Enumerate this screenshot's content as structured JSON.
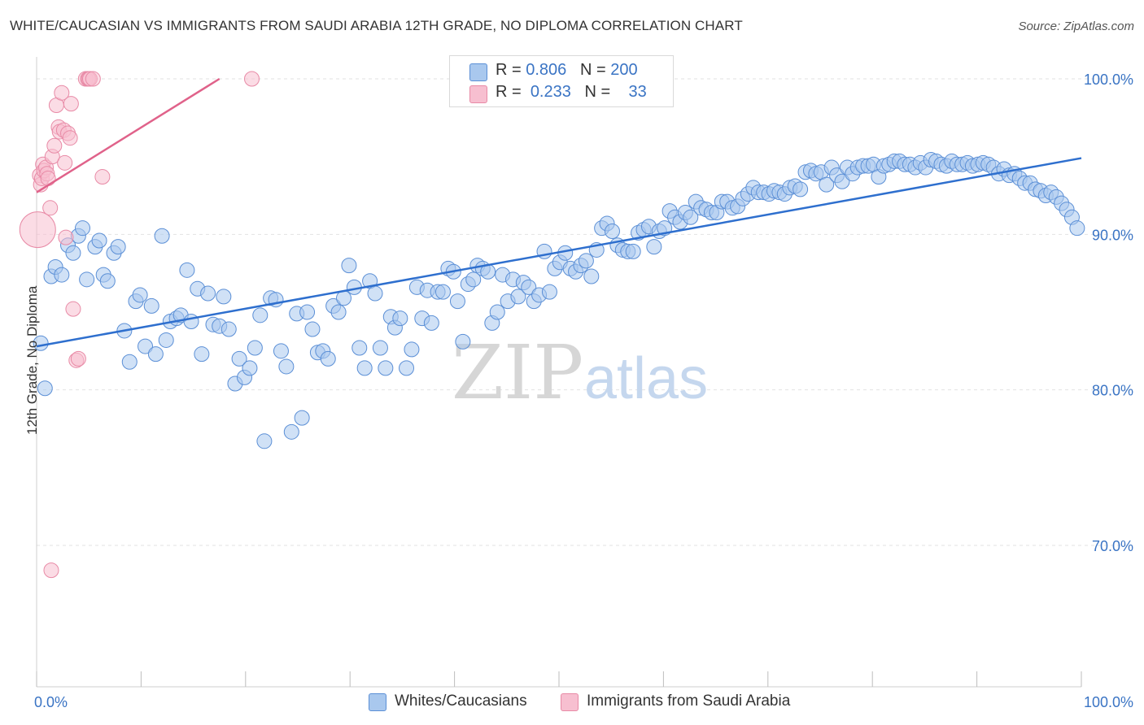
{
  "title": "WHITE/CAUCASIAN VS IMMIGRANTS FROM SAUDI ARABIA 12TH GRADE, NO DIPLOMA CORRELATION CHART",
  "source": "Source: ZipAtlas.com",
  "watermark": {
    "zip": "ZIP",
    "atlas": "atlas"
  },
  "legend": {
    "r_label": "R =",
    "n_label": "N =",
    "series1": {
      "r": "0.806",
      "n": "200"
    },
    "series2": {
      "r": "0.233",
      "n": "33"
    }
  },
  "colors": {
    "blue_fill": "#a9c8ee",
    "blue_stroke": "#5b8fd6",
    "blue_line": "#2e6fce",
    "pink_fill": "#f7bfd0",
    "pink_stroke": "#e88aa6",
    "pink_line": "#e0628a",
    "tick_text": "#3a74c4",
    "grid": "#e2e2e2"
  },
  "chart_data": {
    "type": "scatter",
    "title": "WHITE/CAUCASIAN VS IMMIGRANTS FROM SAUDI ARABIA 12TH GRADE, NO DIPLOMA CORRELATION CHART",
    "xlabel": "",
    "ylabel": "12th Grade, No Diploma",
    "xlim": [
      0,
      100
    ],
    "ylim": [
      60.5,
      102.5
    ],
    "x_tick_labels": [
      "0.0%",
      "100.0%"
    ],
    "y_ticks": [
      70,
      80,
      90,
      100
    ],
    "y_tick_labels": [
      "70.0%",
      "80.0%",
      "90.0%",
      "100.0%"
    ],
    "legend_position": "top-center",
    "series": [
      {
        "name": "Whites/Caucasians",
        "r": 0.806,
        "n": 200,
        "trend": {
          "x": [
            0,
            100
          ],
          "y": [
            82.8,
            94.9
          ]
        },
        "points": [
          [
            0.4,
            83.0
          ],
          [
            0.8,
            80.1
          ],
          [
            1.4,
            87.3
          ],
          [
            1.8,
            87.9
          ],
          [
            2.4,
            87.4
          ],
          [
            3.0,
            89.3
          ],
          [
            3.5,
            88.8
          ],
          [
            4.0,
            89.9
          ],
          [
            4.4,
            90.4
          ],
          [
            4.8,
            87.1
          ],
          [
            5.6,
            89.2
          ],
          [
            6.0,
            89.6
          ],
          [
            6.4,
            87.4
          ],
          [
            6.8,
            87.0
          ],
          [
            7.4,
            88.8
          ],
          [
            7.8,
            89.2
          ],
          [
            8.4,
            83.8
          ],
          [
            8.9,
            81.8
          ],
          [
            9.5,
            85.7
          ],
          [
            9.9,
            86.1
          ],
          [
            10.4,
            82.8
          ],
          [
            11.0,
            85.4
          ],
          [
            11.4,
            82.3
          ],
          [
            12.0,
            89.9
          ],
          [
            12.4,
            83.2
          ],
          [
            12.8,
            84.4
          ],
          [
            13.4,
            84.6
          ],
          [
            13.8,
            84.8
          ],
          [
            14.4,
            87.7
          ],
          [
            14.8,
            84.4
          ],
          [
            15.4,
            86.5
          ],
          [
            15.8,
            82.3
          ],
          [
            16.4,
            86.2
          ],
          [
            16.9,
            84.2
          ],
          [
            17.5,
            84.1
          ],
          [
            17.9,
            86.0
          ],
          [
            18.4,
            83.9
          ],
          [
            19.0,
            80.4
          ],
          [
            19.4,
            82.0
          ],
          [
            19.9,
            80.8
          ],
          [
            20.4,
            81.4
          ],
          [
            20.9,
            82.7
          ],
          [
            21.4,
            84.8
          ],
          [
            21.8,
            76.7
          ],
          [
            22.4,
            85.9
          ],
          [
            22.9,
            85.8
          ],
          [
            23.4,
            82.5
          ],
          [
            23.9,
            81.5
          ],
          [
            24.4,
            77.3
          ],
          [
            24.9,
            84.9
          ],
          [
            25.4,
            78.2
          ],
          [
            25.9,
            85.0
          ],
          [
            26.4,
            83.9
          ],
          [
            26.9,
            82.4
          ],
          [
            27.4,
            82.5
          ],
          [
            27.9,
            82.0
          ],
          [
            28.4,
            85.4
          ],
          [
            28.9,
            85.0
          ],
          [
            29.4,
            85.9
          ],
          [
            29.9,
            88.0
          ],
          [
            30.4,
            86.6
          ],
          [
            30.9,
            82.7
          ],
          [
            31.4,
            81.4
          ],
          [
            31.9,
            87.0
          ],
          [
            32.4,
            86.2
          ],
          [
            32.9,
            82.7
          ],
          [
            33.4,
            81.4
          ],
          [
            33.9,
            84.7
          ],
          [
            34.3,
            84.0
          ],
          [
            34.8,
            84.6
          ],
          [
            35.4,
            81.4
          ],
          [
            35.9,
            82.6
          ],
          [
            36.4,
            86.6
          ],
          [
            36.9,
            84.6
          ],
          [
            37.4,
            86.4
          ],
          [
            37.8,
            84.3
          ],
          [
            38.4,
            86.3
          ],
          [
            38.9,
            86.3
          ],
          [
            39.4,
            87.8
          ],
          [
            39.9,
            87.6
          ],
          [
            40.3,
            85.7
          ],
          [
            40.8,
            83.1
          ],
          [
            41.3,
            86.8
          ],
          [
            41.8,
            87.1
          ],
          [
            42.2,
            88.0
          ],
          [
            42.7,
            87.8
          ],
          [
            43.2,
            87.6
          ],
          [
            43.6,
            84.3
          ],
          [
            44.1,
            85.0
          ],
          [
            44.6,
            87.4
          ],
          [
            45.1,
            85.7
          ],
          [
            45.6,
            87.1
          ],
          [
            46.1,
            86.0
          ],
          [
            46.6,
            86.9
          ],
          [
            47.1,
            86.6
          ],
          [
            47.6,
            85.7
          ],
          [
            48.1,
            86.1
          ],
          [
            48.6,
            88.9
          ],
          [
            49.1,
            86.3
          ],
          [
            49.6,
            87.8
          ],
          [
            50.1,
            88.2
          ],
          [
            50.6,
            88.8
          ],
          [
            51.1,
            87.8
          ],
          [
            51.6,
            87.6
          ],
          [
            52.1,
            88.0
          ],
          [
            52.6,
            88.3
          ],
          [
            53.1,
            87.3
          ],
          [
            53.6,
            89.0
          ],
          [
            54.1,
            90.4
          ],
          [
            54.6,
            90.7
          ],
          [
            55.1,
            90.2
          ],
          [
            55.6,
            89.3
          ],
          [
            56.1,
            89.0
          ],
          [
            56.6,
            88.9
          ],
          [
            57.1,
            88.9
          ],
          [
            57.6,
            90.1
          ],
          [
            58.1,
            90.3
          ],
          [
            58.6,
            90.5
          ],
          [
            59.1,
            89.2
          ],
          [
            59.6,
            90.2
          ],
          [
            60.1,
            90.4
          ],
          [
            60.6,
            91.5
          ],
          [
            61.1,
            91.1
          ],
          [
            61.6,
            90.8
          ],
          [
            62.1,
            91.4
          ],
          [
            62.6,
            91.1
          ],
          [
            63.1,
            92.1
          ],
          [
            63.6,
            91.7
          ],
          [
            64.1,
            91.6
          ],
          [
            64.6,
            91.4
          ],
          [
            65.1,
            91.4
          ],
          [
            65.6,
            92.1
          ],
          [
            66.1,
            92.1
          ],
          [
            66.6,
            91.7
          ],
          [
            67.1,
            91.8
          ],
          [
            67.6,
            92.3
          ],
          [
            68.1,
            92.6
          ],
          [
            68.6,
            93.0
          ],
          [
            69.1,
            92.7
          ],
          [
            69.6,
            92.7
          ],
          [
            70.1,
            92.6
          ],
          [
            70.6,
            92.8
          ],
          [
            71.1,
            92.7
          ],
          [
            71.6,
            92.6
          ],
          [
            72.1,
            93.0
          ],
          [
            72.6,
            93.1
          ],
          [
            73.1,
            92.9
          ],
          [
            73.6,
            94.0
          ],
          [
            74.1,
            94.1
          ],
          [
            74.6,
            93.9
          ],
          [
            75.1,
            94.0
          ],
          [
            75.6,
            93.2
          ],
          [
            76.1,
            94.3
          ],
          [
            76.6,
            93.8
          ],
          [
            77.1,
            93.4
          ],
          [
            77.6,
            94.3
          ],
          [
            78.1,
            93.9
          ],
          [
            78.6,
            94.3
          ],
          [
            79.1,
            94.4
          ],
          [
            79.6,
            94.4
          ],
          [
            80.1,
            94.5
          ],
          [
            80.6,
            93.7
          ],
          [
            81.1,
            94.4
          ],
          [
            81.6,
            94.5
          ],
          [
            82.1,
            94.7
          ],
          [
            82.6,
            94.7
          ],
          [
            83.1,
            94.5
          ],
          [
            83.6,
            94.5
          ],
          [
            84.1,
            94.3
          ],
          [
            84.6,
            94.6
          ],
          [
            85.1,
            94.3
          ],
          [
            85.6,
            94.8
          ],
          [
            86.1,
            94.7
          ],
          [
            86.6,
            94.5
          ],
          [
            87.1,
            94.4
          ],
          [
            87.6,
            94.7
          ],
          [
            88.1,
            94.5
          ],
          [
            88.6,
            94.5
          ],
          [
            89.1,
            94.6
          ],
          [
            89.6,
            94.4
          ],
          [
            90.1,
            94.5
          ],
          [
            90.6,
            94.6
          ],
          [
            91.1,
            94.5
          ],
          [
            91.6,
            94.3
          ],
          [
            92.1,
            93.9
          ],
          [
            92.6,
            94.2
          ],
          [
            93.1,
            93.8
          ],
          [
            93.6,
            93.9
          ],
          [
            94.1,
            93.6
          ],
          [
            94.6,
            93.3
          ],
          [
            95.1,
            93.3
          ],
          [
            95.6,
            92.9
          ],
          [
            96.1,
            92.8
          ],
          [
            96.6,
            92.5
          ],
          [
            97.1,
            92.7
          ],
          [
            97.6,
            92.4
          ],
          [
            98.1,
            92.0
          ],
          [
            98.6,
            91.6
          ],
          [
            99.1,
            91.1
          ],
          [
            99.6,
            90.4
          ]
        ]
      },
      {
        "name": "Immigrants from Saudi Arabia",
        "r": 0.233,
        "n": 33,
        "trend": {
          "x": [
            0,
            17.5
          ],
          "y": [
            92.7,
            100.0
          ]
        },
        "points": [
          [
            0.1,
            90.3
          ],
          [
            0.3,
            93.8
          ],
          [
            0.4,
            93.2
          ],
          [
            0.5,
            93.6
          ],
          [
            0.6,
            94.5
          ],
          [
            0.7,
            94.1
          ],
          [
            0.9,
            94.3
          ],
          [
            1.0,
            93.9
          ],
          [
            1.1,
            93.6
          ],
          [
            1.3,
            91.7
          ],
          [
            1.5,
            95.0
          ],
          [
            1.7,
            95.7
          ],
          [
            1.9,
            98.3
          ],
          [
            2.1,
            96.9
          ],
          [
            2.2,
            96.6
          ],
          [
            2.4,
            99.1
          ],
          [
            2.6,
            96.7
          ],
          [
            2.7,
            94.6
          ],
          [
            2.8,
            89.8
          ],
          [
            3.0,
            96.5
          ],
          [
            3.2,
            96.2
          ],
          [
            3.3,
            98.4
          ],
          [
            3.5,
            85.2
          ],
          [
            3.8,
            81.9
          ],
          [
            4.0,
            82.0
          ],
          [
            4.7,
            100.0
          ],
          [
            4.9,
            100.0
          ],
          [
            5.0,
            100.0
          ],
          [
            5.1,
            100.0
          ],
          [
            5.4,
            100.0
          ],
          [
            6.3,
            93.7
          ],
          [
            20.6,
            100.0
          ],
          [
            1.4,
            68.4
          ]
        ],
        "sizes": [
          22,
          9,
          9,
          9,
          9,
          9,
          9,
          9,
          9,
          9,
          9,
          9,
          9,
          9,
          9,
          9,
          9,
          9,
          9,
          9,
          9,
          9,
          9,
          9,
          9,
          9,
          9,
          9,
          9,
          9,
          9,
          9,
          9
        ]
      }
    ]
  },
  "bottom_legend": {
    "series1": "Whites/Caucasians",
    "series2": "Immigrants from Saudi Arabia"
  }
}
